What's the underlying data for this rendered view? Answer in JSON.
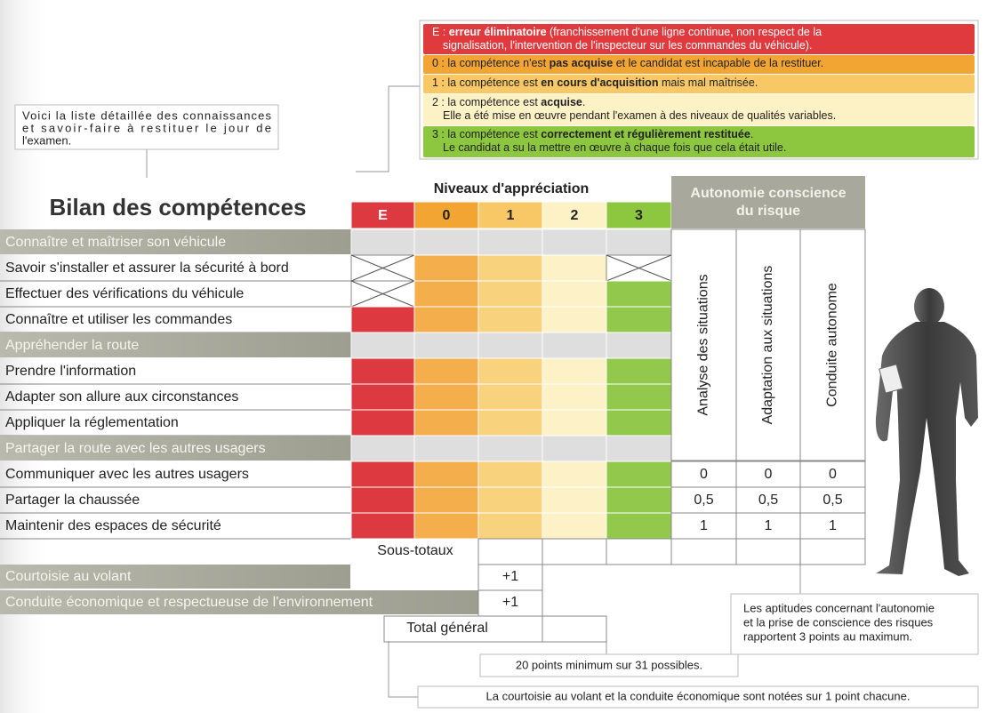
{
  "legend": {
    "items": [
      {
        "lines": [
          [
            "E : ",
            {
              "bold": "erreur éliminatoire"
            },
            " (franchissement d'une ligne continue, non respect de la"
          ],
          [
            "signalisation, l'intervention de l'inspecteur sur les commandes du véhicule)."
          ]
        ]
      },
      {
        "lines": [
          [
            "0 : la compétence n'est ",
            {
              "bold": "pas acquise"
            },
            " et le candidat est incapable de la restituer."
          ]
        ]
      },
      {
        "lines": [
          [
            "1 : la compétence est ",
            {
              "bold": "en cours d'acquisition"
            },
            " mais mal maîtrisée."
          ]
        ]
      },
      {
        "lines": [
          [
            "2 : la compétence est ",
            {
              "bold": "acquise"
            },
            "."
          ],
          [
            "Elle a été mise en œuvre pendant l'examen à des niveaux de qualités variables."
          ]
        ]
      },
      {
        "lines": [
          [
            "3 : la compétence est ",
            {
              "bold": "correctement et régulièrement restituée"
            },
            "."
          ],
          [
            "Le candidat a su la mettre en œuvre à chaque fois que cela était utile."
          ]
        ]
      }
    ]
  },
  "intro_note": [
    "Voici la liste détaillée des connaissances",
    "et savoir-faire à restituer le jour de",
    "l'examen."
  ],
  "title": "Bilan des compétences",
  "table": {
    "header": "Niveaux d'appréciation",
    "levels": [
      "E",
      "0",
      "1",
      "2",
      "3"
    ],
    "autonomy_header": [
      "Autonomie conscience",
      "du risque"
    ],
    "autonomy_columns": [
      "Analyse des situations",
      "Adaptation aux situations",
      "Conduite autonome"
    ],
    "sections": [
      {
        "title": "Connaître et maîtriser son véhicule",
        "rows": [
          "Savoir s'installer et assurer la sécurité à bord",
          "Effectuer des vérifications du véhicule",
          "Connaître et utiliser les commandes"
        ]
      },
      {
        "title": "Appréhender la route",
        "rows": [
          "Prendre l'information",
          "Adapter son allure aux circonstances",
          "Appliquer la réglementation"
        ]
      },
      {
        "title": "Partager la route avec les autres usagers",
        "rows": [
          "Communiquer avec les autres usagers",
          "Partager la chaussée",
          "Maintenir des espaces de sécurité"
        ]
      }
    ],
    "autonomy_scores": [
      [
        "0",
        "0",
        "0"
      ],
      [
        "0,5",
        "0,5",
        "0,5"
      ],
      [
        "1",
        "1",
        "1"
      ]
    ],
    "subtotals_label": "Sous-totaux",
    "bonus_rows": [
      {
        "label": "Courtoisie au volant",
        "value": "+1"
      },
      {
        "label": "Conduite économique et respectueuse de l'environnement",
        "value": "+1"
      }
    ],
    "total_label": "Total général"
  },
  "notes": {
    "autonomy": [
      "Les aptitudes concernant l'autonomie",
      "et la prise de conscience des risques",
      "rapportent 3 points au maximum."
    ],
    "minimum": "20 points minimum sur 31 possibles.",
    "courtesy": "La courtoisie au volant et la conduite économique sont notées sur 1 point chacune."
  }
}
